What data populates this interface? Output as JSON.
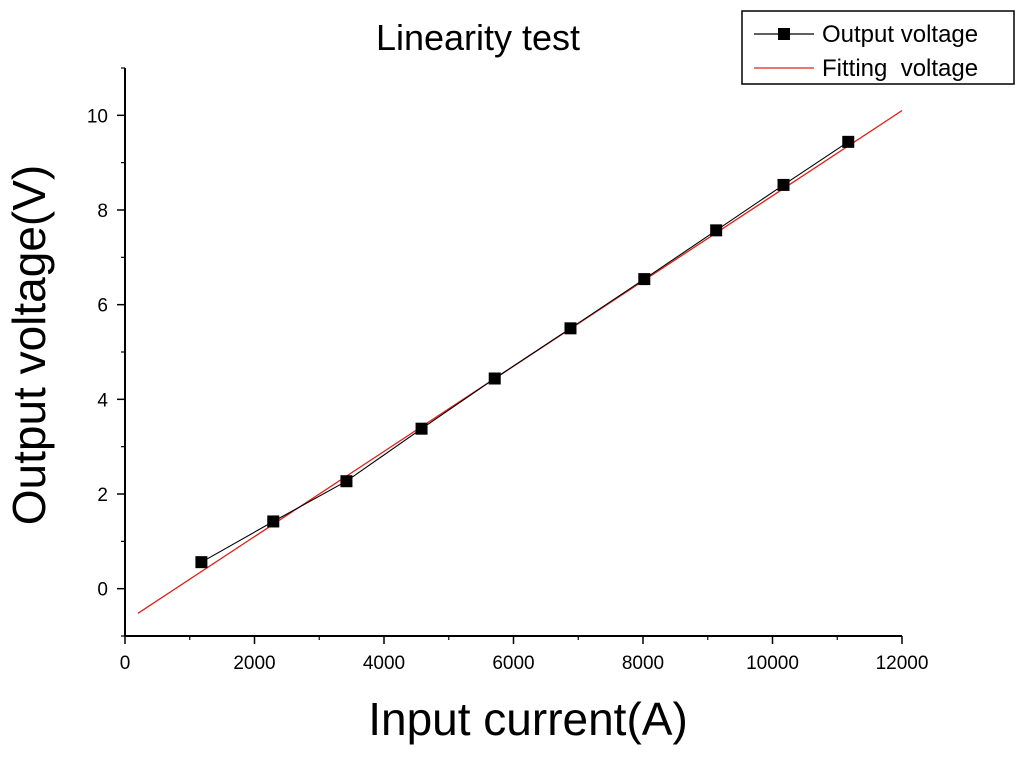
{
  "chart_data": {
    "type": "line",
    "title": "Linearity test",
    "xlabel": "Input current(A)",
    "ylabel": "Output voltage(V)",
    "xlim": [
      0,
      12000
    ],
    "ylim": [
      -1,
      11
    ],
    "x_ticks": [
      "0",
      "2000",
      "4000",
      "6000",
      "8000",
      "10000",
      "12000"
    ],
    "y_ticks": [
      "0",
      "2",
      "4",
      "6",
      "8",
      "10"
    ],
    "grid": false,
    "legend_position": "top-right",
    "series": [
      {
        "name": "Output voltage",
        "kind": "line-with-square-markers",
        "color": "#000000",
        "x": [
          1180,
          2290,
          3420,
          4580,
          5710,
          6880,
          8020,
          9130,
          10170,
          11170
        ],
        "y": [
          0.56,
          1.42,
          2.27,
          3.38,
          4.44,
          5.5,
          6.54,
          7.57,
          8.53,
          9.44
        ]
      },
      {
        "name": "Fitting  voltage",
        "kind": "line",
        "color": "#e0201c",
        "x": [
          200,
          12000
        ],
        "y": [
          -0.52,
          10.1
        ]
      }
    ]
  }
}
